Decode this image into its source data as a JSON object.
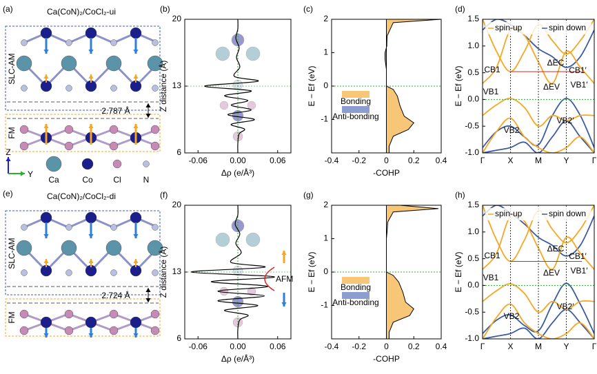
{
  "structures": [
    {
      "label": "(a)",
      "title": "Ca(CoN)₂/CoCl₂-ui",
      "top_layer": "SLC-AM",
      "bottom_layer": "FM",
      "distance": "2.787 Å"
    },
    {
      "label": "(e)",
      "title": "Ca(CoN)₂/CoCl₂-di",
      "top_layer": "SLC-AM",
      "bottom_layer": "FM",
      "distance": "2.724 Å"
    }
  ],
  "atom_legend": {
    "axes": [
      "Z",
      "Y"
    ],
    "atoms": [
      "Ca",
      "Co",
      "Cl",
      "N"
    ]
  },
  "charge_plots": [
    {
      "type": "line",
      "label": "(b)",
      "xlabel": "Δρ (e/Å³)",
      "ylabel": "Z distance (Å)",
      "xlim": [
        -0.08,
        0.08
      ],
      "ylim": [
        6,
        20
      ],
      "xticks": [
        -0.06,
        {
          "value": 0,
          "label": "0.00"
        },
        0.06
      ],
      "yticks": [
        6,
        13,
        20
      ],
      "z": [
        6,
        7,
        8,
        8.5,
        9,
        9.5,
        10,
        10.5,
        11,
        11.5,
        12,
        12.5,
        13,
        13.5,
        14,
        15,
        16,
        17,
        18,
        19,
        20
      ],
      "drho": [
        0,
        0,
        0.002,
        0.01,
        -0.01,
        0.025,
        -0.015,
        0.02,
        -0.01,
        0.015,
        -0.02,
        0.02,
        -0.05,
        0.03,
        -0.005,
        0.003,
        -0.002,
        0.002,
        -0.003,
        0,
        0
      ]
    },
    {
      "type": "line",
      "label": "(f)",
      "xlabel": "Δρ (e/Å³)",
      "ylabel": "Z distance (Å)",
      "xlim": [
        -0.08,
        0.08
      ],
      "ylim": [
        6,
        20
      ],
      "xticks": [
        -0.06,
        {
          "value": 0,
          "label": "0.00"
        },
        0.06
      ],
      "yticks": [
        6,
        13,
        20
      ],
      "annotation": "AFM",
      "z": [
        6,
        7,
        8,
        8.5,
        9,
        9.5,
        10,
        10.5,
        11,
        11.5,
        12,
        12.5,
        13,
        13.5,
        14,
        15,
        16,
        17,
        18,
        19,
        20
      ],
      "drho": [
        0,
        0,
        0.003,
        0.015,
        -0.02,
        0.03,
        -0.03,
        0.04,
        -0.03,
        0.045,
        -0.04,
        0.055,
        -0.07,
        0.04,
        -0.01,
        0.005,
        -0.003,
        0.003,
        -0.004,
        0,
        0
      ]
    }
  ],
  "cohp_plots": [
    {
      "type": "area",
      "label": "(c)",
      "xlabel": "-COHP",
      "ylabel": "E − Ef (eV)",
      "xlim": [
        -0.4,
        0.4
      ],
      "ylim": [
        -2,
        2
      ],
      "xticks": [
        -0.4,
        -0.2,
        0,
        0.2,
        0.4
      ],
      "yticks": [
        -1,
        0,
        1,
        2
      ],
      "legend": [
        "Bonding",
        "Anti-bonding"
      ],
      "colors": [
        "#f8c677",
        "#8d9dcf"
      ],
      "energy": [
        2,
        1.9,
        1.5,
        1.2,
        1,
        0.8,
        0.5,
        0,
        -0.1,
        -0.3,
        -0.6,
        -0.9,
        -1.1,
        -1.3,
        -1.5,
        -1.8,
        -2
      ],
      "cohp": [
        0.4,
        0.05,
        0.005,
        0.003,
        -0.01,
        -0.01,
        0,
        0,
        0.05,
        0.08,
        0.1,
        0.13,
        0.2,
        0.16,
        0.05,
        0.02,
        0.02
      ]
    },
    {
      "type": "area",
      "label": "(g)",
      "xlabel": "-COHP",
      "ylabel": "E − Ef (eV)",
      "xlim": [
        -0.4,
        0.4
      ],
      "ylim": [
        -2,
        2
      ],
      "xticks": [
        -0.4,
        -0.2,
        0,
        0.2,
        0.4
      ],
      "yticks": [
        -1,
        0,
        1,
        2
      ],
      "legend": [
        "Bonding",
        "Anti-bonding"
      ],
      "colors": [
        "#f8c677",
        "#8d9dcf"
      ],
      "energy": [
        2,
        1.9,
        1.8,
        1.5,
        1.2,
        1,
        0.5,
        0,
        -0.1,
        -0.3,
        -0.6,
        -0.9,
        -1.1,
        -1.3,
        -1.5,
        -1.8,
        -2
      ],
      "cohp": [
        0.1,
        0.38,
        0.05,
        0.01,
        0.005,
        0,
        0,
        0,
        0.05,
        0.09,
        0.12,
        0.14,
        0.2,
        0.17,
        0.05,
        0.02,
        0.02
      ]
    }
  ],
  "band_plots": [
    {
      "type": "line",
      "label": "(d)",
      "ylabel": "E − Ef (eV)",
      "ylim": [
        -1,
        1.5
      ],
      "yticks": [
        {
          "value": -1,
          "label": "-1.0"
        },
        -0.5,
        {
          "value": 0,
          "label": "0.0"
        },
        0.5,
        {
          "value": 1,
          "label": "1.0"
        },
        1.5
      ],
      "kpoints": [
        {
          "value": 0,
          "label": "Γ"
        },
        {
          "value": 1,
          "label": "X"
        },
        {
          "value": 2,
          "label": "M"
        },
        {
          "value": 3,
          "label": "Y"
        },
        {
          "value": 4,
          "label": "Γ"
        }
      ],
      "legend": [
        "spin-up",
        "spin down"
      ],
      "colors": [
        "#f5a623",
        "#3a5ba0"
      ],
      "annotations": [
        "CB1",
        "CB1′",
        "ΔEC",
        "VB1",
        "VB1′",
        "ΔEV",
        "VB2",
        "VB2′"
      ],
      "k": [
        0,
        0.5,
        1,
        1.5,
        2,
        2.5,
        3,
        3.5,
        4
      ],
      "spin_up": [
        [
          1.5,
          0.9,
          0.52,
          0.9,
          1.4,
          1.1,
          0.85,
          1.1,
          1.5
        ],
        [
          -0.3,
          -0.1,
          0.02,
          -0.15,
          -0.5,
          -0.3,
          -0.4,
          -0.3,
          -0.3
        ],
        [
          -1,
          -0.6,
          -0.35,
          -0.7,
          -0.9,
          -1,
          -0.9,
          -0.7,
          -1
        ],
        [
          0.3,
          0.6,
          1.3,
          1.2,
          0.7,
          0.3,
          0.9,
          0.6,
          0.3
        ]
      ],
      "spin_down": [
        [
          1.3,
          1.5,
          1.4,
          1.2,
          0.95,
          0.8,
          0.6,
          0.8,
          1.3
        ],
        [
          -0.9,
          -0.6,
          -0.5,
          -0.7,
          -0.85,
          -0.3,
          0.02,
          -0.3,
          -0.9
        ],
        [
          -1,
          -0.95,
          -0.9,
          -0.8,
          -1,
          -0.7,
          -0.4,
          -0.7,
          -1
        ]
      ]
    },
    {
      "type": "line",
      "label": "(h)",
      "ylabel": "E − Ef (eV)",
      "ylim": [
        -1,
        1.5
      ],
      "yticks": [
        {
          "value": -1,
          "label": "-1.0"
        },
        -0.5,
        {
          "value": 0,
          "label": "0.0"
        },
        0.5,
        {
          "value": 1,
          "label": "1.0"
        },
        1.5
      ],
      "kpoints": [
        {
          "value": 0,
          "label": "Γ"
        },
        {
          "value": 1,
          "label": "X"
        },
        {
          "value": 2,
          "label": "M"
        },
        {
          "value": 3,
          "label": "Y"
        },
        {
          "value": 4,
          "label": "Γ"
        }
      ],
      "legend": [
        "spin-up",
        "spin down"
      ],
      "colors": [
        "#f5a623",
        "#3a5ba0"
      ],
      "annotations": [
        "CB1",
        "CB1′",
        "ΔEC",
        "VB1",
        "VB1′",
        "ΔEV",
        "VB2",
        "VB2′"
      ],
      "k": [
        0,
        0.5,
        1,
        1.5,
        2,
        2.5,
        3,
        3.5,
        4
      ],
      "spin_up": [
        [
          1.5,
          0.85,
          0.45,
          0.85,
          1.4,
          1.05,
          0.8,
          1.05,
          1.5
        ],
        [
          -0.3,
          -0.1,
          0.03,
          -0.15,
          -0.5,
          -0.3,
          -0.45,
          -0.3,
          -0.3
        ],
        [
          -1,
          -0.6,
          -0.35,
          -0.7,
          -0.9,
          -1,
          -0.9,
          -0.7,
          -1
        ],
        [
          0.3,
          0.6,
          1.3,
          1.2,
          0.7,
          0.3,
          0.9,
          0.6,
          0.3
        ]
      ],
      "spin_down": [
        [
          1.3,
          1.5,
          1.35,
          1.15,
          0.9,
          0.75,
          0.55,
          0.75,
          1.3
        ],
        [
          -0.9,
          -0.65,
          -0.55,
          -0.75,
          -0.85,
          -0.35,
          0.04,
          -0.35,
          -0.9
        ],
        [
          -1,
          -0.95,
          -0.9,
          -0.8,
          -1,
          -0.7,
          -0.45,
          -0.7,
          -1
        ]
      ]
    }
  ]
}
